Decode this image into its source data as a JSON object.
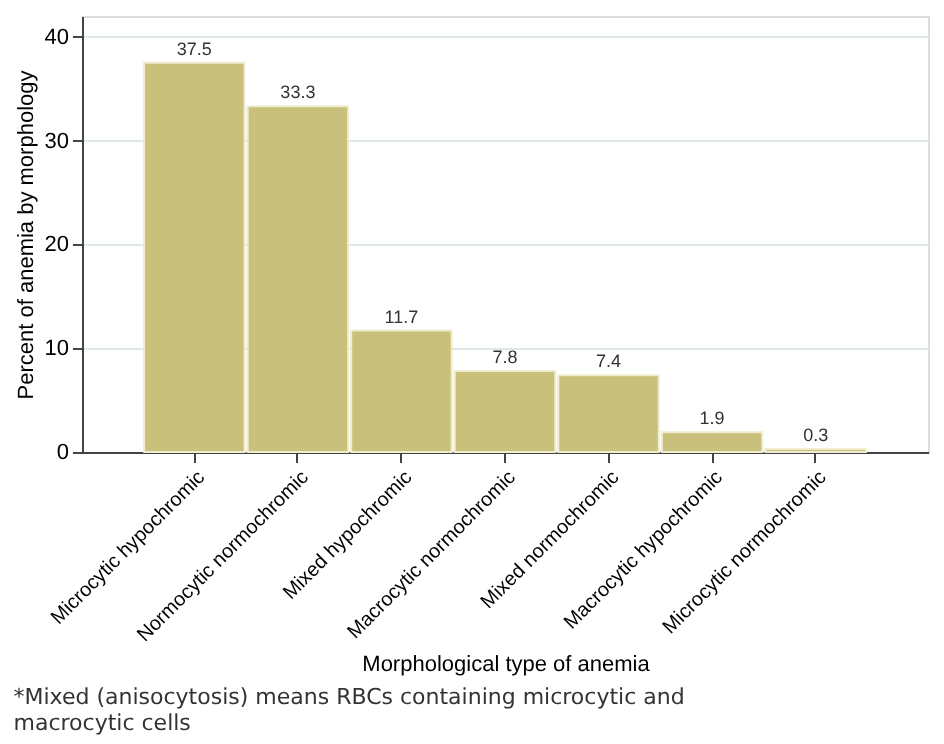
{
  "chart_data": {
    "type": "bar",
    "categories": [
      "Microcytic hypochromic",
      "Normocytic normochromic",
      "Mixed hypochromic",
      "Macrocytic normochromic",
      "Mixed normochromic",
      "Macrocytic hypochromic",
      "Microcytic normochromic"
    ],
    "values": [
      37.5,
      33.3,
      11.7,
      7.8,
      7.4,
      1.9,
      0.3
    ],
    "color": "#c9c17b",
    "xlabel": "Morphological type of anemia",
    "ylabel": "Percent of anemia by morphology",
    "ylim": [
      0,
      42
    ],
    "yticks": [
      0,
      10,
      20,
      30,
      40
    ],
    "grid": "y",
    "data_labels": true,
    "annotations": [
      "*Mixed (anisocytosis) means RBCs containing microcytic and macrocytic cells"
    ]
  }
}
